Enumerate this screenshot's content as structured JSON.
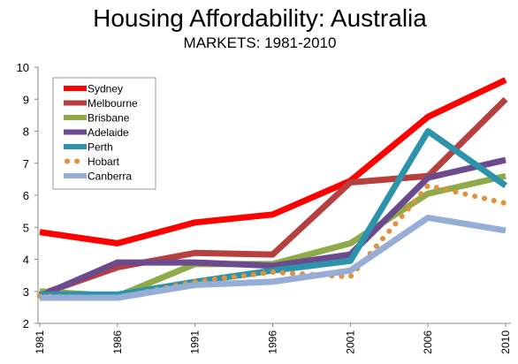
{
  "chart_data": {
    "type": "line",
    "title": "Housing Affordability: Australia",
    "subtitle": "MARKETS: 1981-2010",
    "xlabel": "",
    "ylabel": "",
    "categories": [
      "1981",
      "1986",
      "1991",
      "1996",
      "2001",
      "2006",
      "2010"
    ],
    "ylim": [
      2,
      10
    ],
    "yticks": [
      "2",
      "3",
      "4",
      "5",
      "6",
      "7",
      "8",
      "9",
      "10"
    ],
    "grid": false,
    "legend_position": "top-left",
    "series": [
      {
        "name": "Sydney",
        "color": "#ff0000",
        "style": "solid",
        "values": [
          4.85,
          4.5,
          5.15,
          5.4,
          6.45,
          8.45,
          9.6
        ]
      },
      {
        "name": "Melbourne",
        "color": "#b5403e",
        "style": "solid",
        "values": [
          2.9,
          3.75,
          4.2,
          4.15,
          6.4,
          6.6,
          9.0
        ]
      },
      {
        "name": "Brisbane",
        "color": "#8faa48",
        "style": "solid",
        "values": [
          3.0,
          2.85,
          3.85,
          3.85,
          4.5,
          6.05,
          6.6
        ]
      },
      {
        "name": "Adelaide",
        "color": "#6b4a8e",
        "style": "solid",
        "values": [
          2.85,
          3.9,
          3.9,
          3.8,
          4.15,
          6.55,
          7.1
        ]
      },
      {
        "name": "Perth",
        "color": "#2b93aa",
        "style": "solid",
        "values": [
          2.9,
          2.9,
          3.3,
          3.65,
          3.95,
          8.0,
          6.3
        ]
      },
      {
        "name": "Hobart",
        "color": "#e1913b",
        "style": "dotted",
        "values": [
          2.85,
          2.8,
          3.3,
          3.6,
          3.45,
          6.3,
          5.75
        ]
      },
      {
        "name": "Canberra",
        "color": "#96add5",
        "style": "solid",
        "values": [
          2.8,
          2.8,
          3.2,
          3.3,
          3.65,
          5.3,
          4.9
        ]
      }
    ]
  }
}
